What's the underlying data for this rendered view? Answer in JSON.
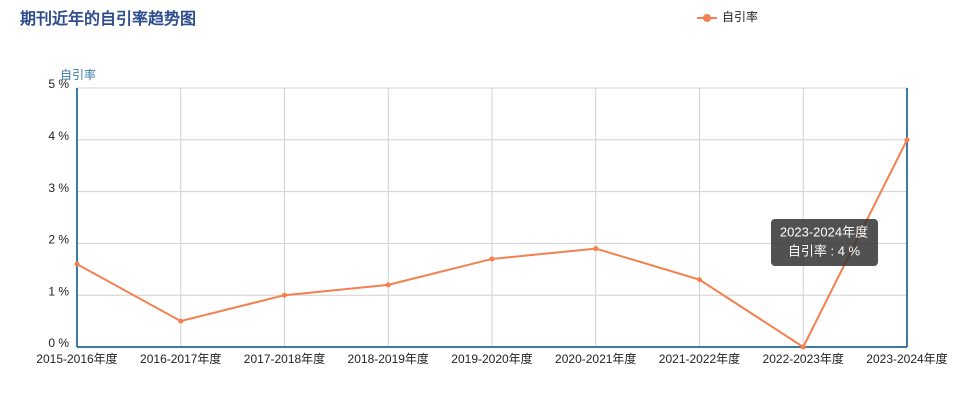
{
  "chart_data": {
    "type": "line",
    "title": "期刊近年的自引率趋势图",
    "y_label": "自引率",
    "categories": [
      "2015-2016年度",
      "2016-2017年度",
      "2017-2018年度",
      "2018-2019年度",
      "2019-2020年度",
      "2020-2021年度",
      "2021-2022年度",
      "2022-2023年度",
      "2023-2024年度"
    ],
    "series": [
      {
        "name": "自引率",
        "color": "#f4804f",
        "values": [
          1.6,
          0.5,
          1.0,
          1.2,
          1.7,
          1.9,
          1.3,
          0,
          4
        ]
      }
    ],
    "ylim": [
      0,
      5
    ],
    "yticks": [
      {
        "value": 0,
        "label": "0 %"
      },
      {
        "value": 1,
        "label": "1 %"
      },
      {
        "value": 2,
        "label": "2 %"
      },
      {
        "value": 3,
        "label": "3 %"
      },
      {
        "value": 4,
        "label": "4 %"
      },
      {
        "value": 5,
        "label": "5 %"
      }
    ],
    "grid": true,
    "legend": "top-right",
    "tooltip": {
      "title": "2023-2024年度",
      "label": "自引率 : 4 %"
    }
  }
}
